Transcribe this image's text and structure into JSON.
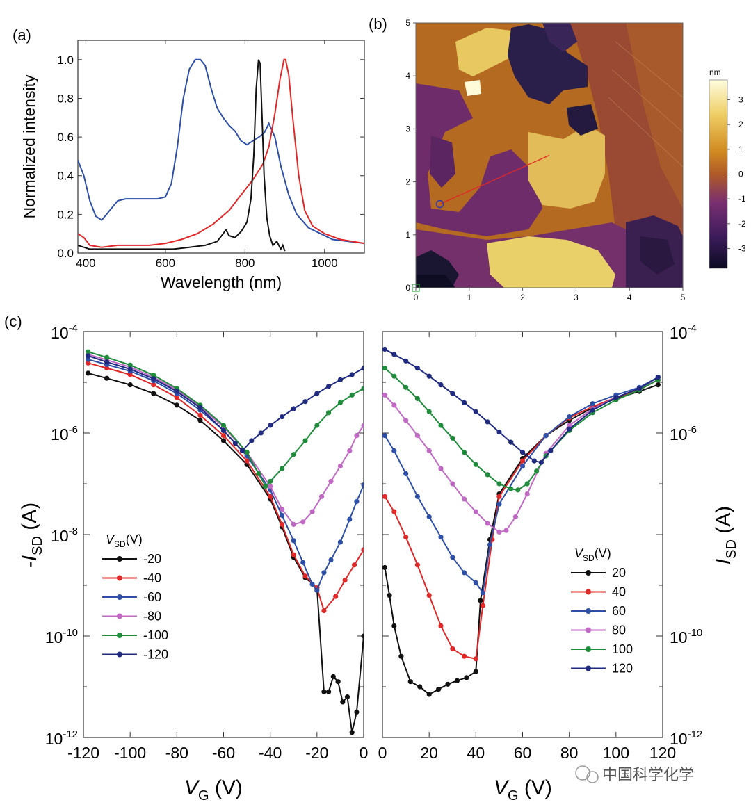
{
  "panel_labels": {
    "a": "(a)",
    "b": "(b)",
    "c": "(c)"
  },
  "chart_data": [
    {
      "id": "a",
      "type": "line",
      "title": "",
      "xlabel": "Wavelength (nm)",
      "ylabel": "Normalized intensity",
      "xlim": [
        380,
        1100
      ],
      "ylim": [
        0,
        1.1
      ],
      "xticks": [
        400,
        600,
        800,
        1000
      ],
      "yticks": [
        0.0,
        0.2,
        0.4,
        0.6,
        0.8,
        1.0
      ],
      "xtick_labels": [
        "400",
        "600",
        "800",
        "1000"
      ],
      "ytick_labels": [
        "0.0",
        "0.2",
        "0.4",
        "0.6",
        "0.8",
        "1.0"
      ],
      "series": [
        {
          "name": "blue",
          "color": "#2d4fa8",
          "x": [
            380,
            395,
            410,
            425,
            440,
            460,
            480,
            500,
            520,
            540,
            560,
            580,
            600,
            615,
            630,
            645,
            660,
            675,
            688,
            700,
            715,
            730,
            745,
            760,
            775,
            790,
            805,
            820,
            835,
            848,
            860,
            875,
            890,
            910,
            930,
            960,
            990,
            1020,
            1060,
            1100
          ],
          "y": [
            0.48,
            0.4,
            0.27,
            0.19,
            0.17,
            0.22,
            0.27,
            0.28,
            0.28,
            0.28,
            0.28,
            0.28,
            0.29,
            0.36,
            0.55,
            0.8,
            0.95,
            1.0,
            1.0,
            0.97,
            0.85,
            0.75,
            0.7,
            0.66,
            0.63,
            0.58,
            0.56,
            0.58,
            0.6,
            0.62,
            0.67,
            0.6,
            0.45,
            0.3,
            0.2,
            0.13,
            0.1,
            0.07,
            0.06,
            0.05
          ]
        },
        {
          "name": "red",
          "color": "#e02828",
          "x": [
            380,
            395,
            410,
            440,
            480,
            520,
            560,
            600,
            640,
            680,
            720,
            760,
            790,
            820,
            845,
            860,
            875,
            888,
            898,
            902,
            910,
            920,
            935,
            950,
            970,
            1000,
            1040,
            1100
          ],
          "y": [
            0.1,
            0.08,
            0.04,
            0.03,
            0.04,
            0.04,
            0.04,
            0.05,
            0.07,
            0.1,
            0.15,
            0.22,
            0.3,
            0.38,
            0.46,
            0.55,
            0.72,
            0.9,
            1.0,
            1.0,
            0.92,
            0.7,
            0.4,
            0.22,
            0.14,
            0.1,
            0.07,
            0.05
          ]
        },
        {
          "name": "black",
          "color": "#111111",
          "x": [
            380,
            395,
            410,
            430,
            460,
            500,
            540,
            580,
            620,
            660,
            700,
            730,
            745,
            752,
            760,
            775,
            790,
            805,
            815,
            822,
            828,
            834,
            838,
            843,
            848,
            855,
            862,
            870,
            880,
            890,
            895,
            900
          ],
          "y": [
            0.04,
            0.03,
            0.02,
            0.02,
            0.02,
            0.02,
            0.02,
            0.02,
            0.02,
            0.03,
            0.04,
            0.06,
            0.1,
            0.12,
            0.09,
            0.08,
            0.11,
            0.16,
            0.28,
            0.5,
            0.85,
            1.0,
            0.98,
            0.7,
            0.4,
            0.18,
            0.09,
            0.04,
            0.06,
            0.02,
            0.04,
            0.01
          ]
        }
      ]
    },
    {
      "id": "b",
      "type": "heatmap",
      "title": "",
      "xlabel": "",
      "ylabel": "",
      "xlim": [
        0,
        5
      ],
      "ylim": [
        0,
        5
      ],
      "xtick_labels": [
        "0",
        "1",
        "2",
        "3",
        "4",
        "5"
      ],
      "ytick_labels": [
        "0",
        "1",
        "2",
        "3",
        "4",
        "5"
      ],
      "colorbar": {
        "unit": "nm",
        "range": [
          -3.8,
          3.8
        ],
        "tick_labels": [
          "3",
          "2",
          "1",
          "0",
          "-1",
          "-2",
          "-3"
        ],
        "ticks": [
          3,
          2,
          1,
          0,
          -1,
          -2,
          -3
        ]
      },
      "line_profile": {
        "from": [
          0.45,
          1.58
        ],
        "to": [
          2.5,
          2.5
        ],
        "color": "#e02828"
      },
      "terrace_levels_nm": [
        -3.2,
        -1.2,
        0.8,
        2.9
      ]
    },
    {
      "id": "c-left",
      "type": "line",
      "log_y": true,
      "xlabel": "V_G (V)",
      "ylabel": "-I_SD (A)",
      "xlim": [
        -120,
        0
      ],
      "ylim_exp": [
        -12,
        -4
      ],
      "xtick_labels": [
        "-120",
        "-100",
        "-80",
        "-60",
        "-40",
        "-20",
        "0"
      ],
      "xticks": [
        -120,
        -100,
        -80,
        -60,
        -40,
        -20,
        0
      ],
      "ytick_exps": [
        -4,
        -6,
        -8,
        -10,
        -12
      ],
      "legend_title": "V_SD(V)",
      "series": [
        {
          "name": "-20",
          "color": "#111111",
          "x": [
            -118,
            -110,
            -100,
            -90,
            -80,
            -70,
            -60,
            -50,
            -40,
            -35,
            -30,
            -25,
            -20,
            -17,
            -15,
            -13,
            -11,
            -9,
            -7,
            -5,
            -3,
            0
          ],
          "y": [
            -4.82,
            -4.92,
            -5.05,
            -5.22,
            -5.45,
            -5.75,
            -6.15,
            -6.62,
            -7.3,
            -7.85,
            -8.45,
            -8.85,
            -9.05,
            -11.1,
            -11.1,
            -10.8,
            -10.9,
            -11.3,
            -11.2,
            -11.9,
            -11.5,
            -10.0
          ]
        },
        {
          "name": "-40",
          "color": "#e02828",
          "x": [
            -118,
            -110,
            -100,
            -90,
            -80,
            -70,
            -60,
            -50,
            -40,
            -35,
            -30,
            -25,
            -20,
            -17,
            -12,
            -8,
            -4,
            0
          ],
          "y": [
            -4.62,
            -4.72,
            -4.85,
            -5.05,
            -5.3,
            -5.65,
            -6.05,
            -6.55,
            -7.25,
            -7.8,
            -8.4,
            -8.82,
            -9.05,
            -9.5,
            -9.22,
            -8.9,
            -8.6,
            -8.3
          ]
        },
        {
          "name": "-60",
          "color": "#2d4fa8",
          "x": [
            -118,
            -110,
            -100,
            -90,
            -80,
            -70,
            -60,
            -50,
            -40,
            -35,
            -30,
            -26,
            -22,
            -20,
            -17,
            -14,
            -10,
            -6,
            -3,
            0
          ],
          "y": [
            -4.55,
            -4.65,
            -4.78,
            -4.97,
            -5.22,
            -5.55,
            -5.95,
            -6.45,
            -7.12,
            -7.62,
            -8.12,
            -8.55,
            -8.98,
            -9.1,
            -8.75,
            -8.5,
            -8.15,
            -7.7,
            -7.35,
            -7.02
          ]
        },
        {
          "name": "-80",
          "color": "#c06ac4",
          "x": [
            -118,
            -110,
            -100,
            -90,
            -80,
            -70,
            -60,
            -50,
            -40,
            -35,
            -30,
            -26,
            -22,
            -18,
            -14,
            -10,
            -6,
            -3,
            0
          ],
          "y": [
            -4.45,
            -4.56,
            -4.7,
            -4.9,
            -5.15,
            -5.48,
            -5.88,
            -6.38,
            -7.05,
            -7.5,
            -7.8,
            -7.75,
            -7.55,
            -7.25,
            -6.95,
            -6.65,
            -6.35,
            -6.05,
            -5.85
          ]
        },
        {
          "name": "-100",
          "color": "#1f8c3c",
          "x": [
            -118,
            -110,
            -100,
            -90,
            -80,
            -70,
            -60,
            -50,
            -45,
            -42,
            -40,
            -35,
            -30,
            -25,
            -20,
            -15,
            -10,
            -5,
            0
          ],
          "y": [
            -4.4,
            -4.51,
            -4.66,
            -4.86,
            -5.12,
            -5.45,
            -5.85,
            -6.38,
            -6.8,
            -7.05,
            -6.95,
            -6.7,
            -6.42,
            -6.15,
            -5.85,
            -5.6,
            -5.4,
            -5.25,
            -5.12
          ]
        },
        {
          "name": "-120",
          "color": "#1f2a80",
          "x": [
            -118,
            -110,
            -100,
            -90,
            -80,
            -70,
            -60,
            -55,
            -52,
            -48,
            -44,
            -40,
            -35,
            -30,
            -25,
            -20,
            -15,
            -10,
            -5,
            0
          ],
          "y": [
            -4.48,
            -4.6,
            -4.74,
            -4.93,
            -5.18,
            -5.5,
            -5.95,
            -6.2,
            -6.35,
            -6.15,
            -6.0,
            -5.85,
            -5.68,
            -5.52,
            -5.38,
            -5.22,
            -5.08,
            -4.95,
            -4.85,
            -4.72
          ]
        }
      ]
    },
    {
      "id": "c-right",
      "type": "line",
      "log_y": true,
      "xlabel": "V_G (V)",
      "ylabel": "I_SD (A)",
      "xlim": [
        0,
        120
      ],
      "ylim_exp": [
        -12,
        -4
      ],
      "xtick_labels": [
        "0",
        "20",
        "40",
        "60",
        "80",
        "100",
        "120"
      ],
      "xticks": [
        0,
        20,
        40,
        60,
        80,
        100,
        120
      ],
      "ytick_exps": [
        -4,
        -6,
        -10,
        -12
      ],
      "legend_title": "V_SD(V)",
      "series": [
        {
          "name": "20",
          "color": "#111111",
          "x": [
            1,
            3,
            5,
            8,
            12,
            16,
            20,
            24,
            28,
            32,
            36,
            40,
            42,
            46,
            50,
            60,
            70,
            80,
            90,
            100,
            110,
            118
          ],
          "y": [
            -8.65,
            -9.2,
            -9.8,
            -10.4,
            -10.9,
            -11.0,
            -11.15,
            -11.05,
            -10.95,
            -10.88,
            -10.82,
            -10.7,
            -9.3,
            -8.1,
            -7.2,
            -6.5,
            -6.05,
            -5.75,
            -5.5,
            -5.32,
            -5.18,
            -5.05
          ]
        },
        {
          "name": "40",
          "color": "#e02828",
          "x": [
            1,
            5,
            10,
            15,
            20,
            25,
            30,
            35,
            40,
            43,
            47,
            50,
            60,
            70,
            80,
            90,
            100,
            110,
            118
          ],
          "y": [
            -7.25,
            -7.55,
            -8.05,
            -8.6,
            -9.2,
            -9.8,
            -10.25,
            -10.4,
            -10.45,
            -9.4,
            -8.1,
            -7.25,
            -6.55,
            -6.05,
            -5.7,
            -5.48,
            -5.3,
            -5.15,
            -4.95
          ]
        },
        {
          "name": "60",
          "color": "#2d4fa8",
          "x": [
            1,
            5,
            10,
            15,
            20,
            25,
            30,
            35,
            40,
            43,
            46,
            50,
            60,
            70,
            80,
            90,
            100,
            110,
            118
          ],
          "y": [
            -6.05,
            -6.35,
            -6.8,
            -7.25,
            -7.65,
            -8.05,
            -8.45,
            -8.75,
            -8.95,
            -9.15,
            -8.2,
            -7.4,
            -6.65,
            -6.05,
            -5.68,
            -5.42,
            -5.25,
            -5.1,
            -4.9
          ]
        },
        {
          "name": "80",
          "color": "#c06ac4",
          "x": [
            1,
            5,
            10,
            15,
            20,
            25,
            30,
            35,
            40,
            45,
            50,
            53,
            57,
            62,
            70,
            80,
            90,
            100,
            110,
            118
          ],
          "y": [
            -5.25,
            -5.45,
            -5.75,
            -6.05,
            -6.35,
            -6.7,
            -7.0,
            -7.3,
            -7.55,
            -7.78,
            -7.95,
            -7.92,
            -7.65,
            -7.2,
            -6.4,
            -5.85,
            -5.52,
            -5.3,
            -5.12,
            -4.95
          ]
        },
        {
          "name": "100",
          "color": "#1f8c3c",
          "x": [
            1,
            5,
            10,
            15,
            20,
            25,
            30,
            35,
            40,
            45,
            50,
            55,
            58,
            62,
            66,
            70,
            80,
            90,
            100,
            110,
            118
          ],
          "y": [
            -4.72,
            -4.88,
            -5.1,
            -5.32,
            -5.58,
            -5.85,
            -6.1,
            -6.38,
            -6.62,
            -6.82,
            -7.0,
            -7.1,
            -7.12,
            -7.0,
            -6.75,
            -6.45,
            -5.95,
            -5.6,
            -5.35,
            -5.15,
            -4.95
          ]
        },
        {
          "name": "120",
          "color": "#1f2a80",
          "x": [
            1,
            5,
            10,
            15,
            20,
            25,
            30,
            35,
            40,
            45,
            50,
            55,
            60,
            65,
            68,
            72,
            80,
            90,
            100,
            110,
            118
          ],
          "y": [
            -4.35,
            -4.45,
            -4.58,
            -4.72,
            -4.88,
            -5.05,
            -5.22,
            -5.4,
            -5.58,
            -5.78,
            -5.98,
            -6.18,
            -6.38,
            -6.55,
            -6.58,
            -6.35,
            -5.92,
            -5.55,
            -5.3,
            -5.12,
            -4.9
          ]
        }
      ]
    }
  ],
  "watermark": "中国科学化学"
}
